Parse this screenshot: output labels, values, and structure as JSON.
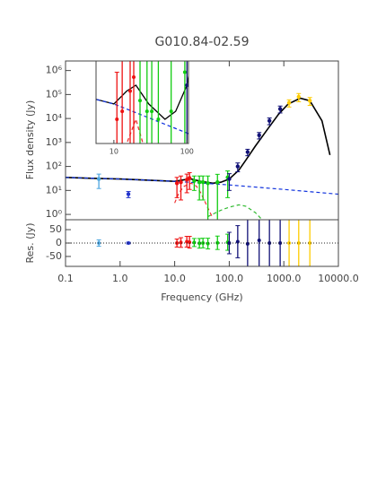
{
  "chart_data": {
    "type": "sed",
    "title": "G010.84-02.59",
    "xlabel": "Frequency (GHz)",
    "ylabel": "Flux density (Jy)",
    "reslabel": "Res. (Jy)",
    "xlog": true,
    "ylog": true,
    "xlim": [
      0.1,
      10000
    ],
    "ylim": [
      0.6,
      2500000
    ],
    "xticks": [
      0.1,
      {
        "value": 1,
        "label": "1.0"
      },
      {
        "value": 10,
        "label": "10.0"
      },
      {
        "value": 100,
        "label": "100.0"
      },
      {
        "value": 1000,
        "label": "1000.0"
      },
      {
        "value": 10000,
        "label": "10000.0"
      }
    ],
    "yticks": [
      {
        "value": 1,
        "label": "10⁰"
      },
      {
        "value": 10,
        "label": "10¹"
      },
      {
        "value": 100,
        "label": "10²"
      },
      {
        "value": 1000,
        "label": "10³"
      },
      {
        "value": 10000,
        "label": "10⁴"
      },
      {
        "value": 100000,
        "label": "10⁵"
      },
      {
        "value": 1000000,
        "label": "10⁶"
      }
    ],
    "reslim": [
      -87,
      87
    ],
    "resticks": [
      -50,
      0,
      50
    ],
    "series": [
      {
        "color": "#4da6e0",
        "x": [
          0.408
        ],
        "values": [
          30
        ],
        "errors": [
          18
        ],
        "residuals": [
          0
        ],
        "residual_errors": [
          12
        ]
      },
      {
        "color": "#2233cc",
        "x": [
          1.42
        ],
        "values": [
          7
        ],
        "errors": [
          2
        ],
        "residuals": [
          0
        ],
        "residual_errors": [
          3
        ]
      },
      {
        "color": "#ee1111",
        "x": [
          11,
          13,
          16.7,
          18.7
        ],
        "values": [
          20,
          22,
          28,
          33
        ],
        "errors": [
          15,
          18,
          20,
          22
        ],
        "residuals": [
          0,
          2,
          5,
          3
        ],
        "residual_errors": [
          15,
          18,
          20,
          22
        ]
      },
      {
        "color": "#11cc11",
        "x": [
          22.8,
          28.4,
          33,
          40.6,
          60.8,
          93.5
        ],
        "values": [
          25,
          22,
          22,
          20,
          22,
          35
        ],
        "errors": [
          15,
          18,
          18,
          20,
          25,
          30
        ],
        "residuals": [
          2,
          -1,
          0,
          -2,
          1,
          3
        ],
        "residual_errors": [
          15,
          18,
          18,
          20,
          25,
          30
        ]
      },
      {
        "color": "#111177",
        "x": [
          100,
          143,
          217,
          353,
          545,
          857
        ],
        "values": [
          30,
          100,
          400,
          2000,
          8000,
          25000
        ],
        "errors": [
          20,
          40,
          120,
          600,
          2500,
          8000
        ],
        "residuals": [
          0,
          5,
          -3,
          10,
          0,
          0
        ],
        "residual_errors": [
          40,
          60,
          120,
          400,
          1500,
          5000
        ]
      },
      {
        "color": "#ffcc00",
        "x": [
          1249,
          1874,
          2998
        ],
        "values": [
          45000,
          80000,
          55000
        ],
        "errors": [
          15000,
          30000,
          20000
        ],
        "residuals": [
          0,
          0,
          0
        ],
        "residual_errors": [
          20000,
          30000,
          20000
        ]
      }
    ],
    "models": [
      {
        "color": "#000000",
        "dash": false,
        "x": [
          0.1,
          0.3,
          1,
          3,
          10,
          15,
          20,
          30,
          50,
          70,
          100,
          150,
          200,
          300,
          500,
          800,
          1200,
          2000,
          3000,
          5000,
          7000
        ],
        "values": [
          35,
          32,
          30,
          27,
          24,
          28,
          30,
          24,
          20,
          22,
          30,
          70,
          180,
          700,
          3500,
          15000,
          40000,
          70000,
          55000,
          8000,
          300
        ]
      },
      {
        "color": "#1133dd",
        "dash": true,
        "x": [
          0.1,
          1,
          10,
          100,
          1000,
          10000
        ],
        "values": [
          35,
          30,
          24,
          17,
          11,
          7
        ]
      },
      {
        "color": "#ee3333",
        "dash": true,
        "x": [
          10,
          12,
          15,
          20,
          25,
          30,
          40,
          50
        ],
        "values": [
          3,
          8,
          15,
          20,
          15,
          8,
          2,
          0.7
        ]
      },
      {
        "color": "#33bb33",
        "dash": true,
        "x": [
          40,
          70,
          100,
          150,
          200,
          300,
          400
        ],
        "values": [
          0.8,
          1.5,
          2,
          2.5,
          2.2,
          1.2,
          0.6
        ]
      }
    ],
    "inset": {
      "xlim": [
        5.7,
        105
      ],
      "ylim": [
        15,
        40
      ],
      "xticks": [
        10,
        100
      ]
    }
  }
}
